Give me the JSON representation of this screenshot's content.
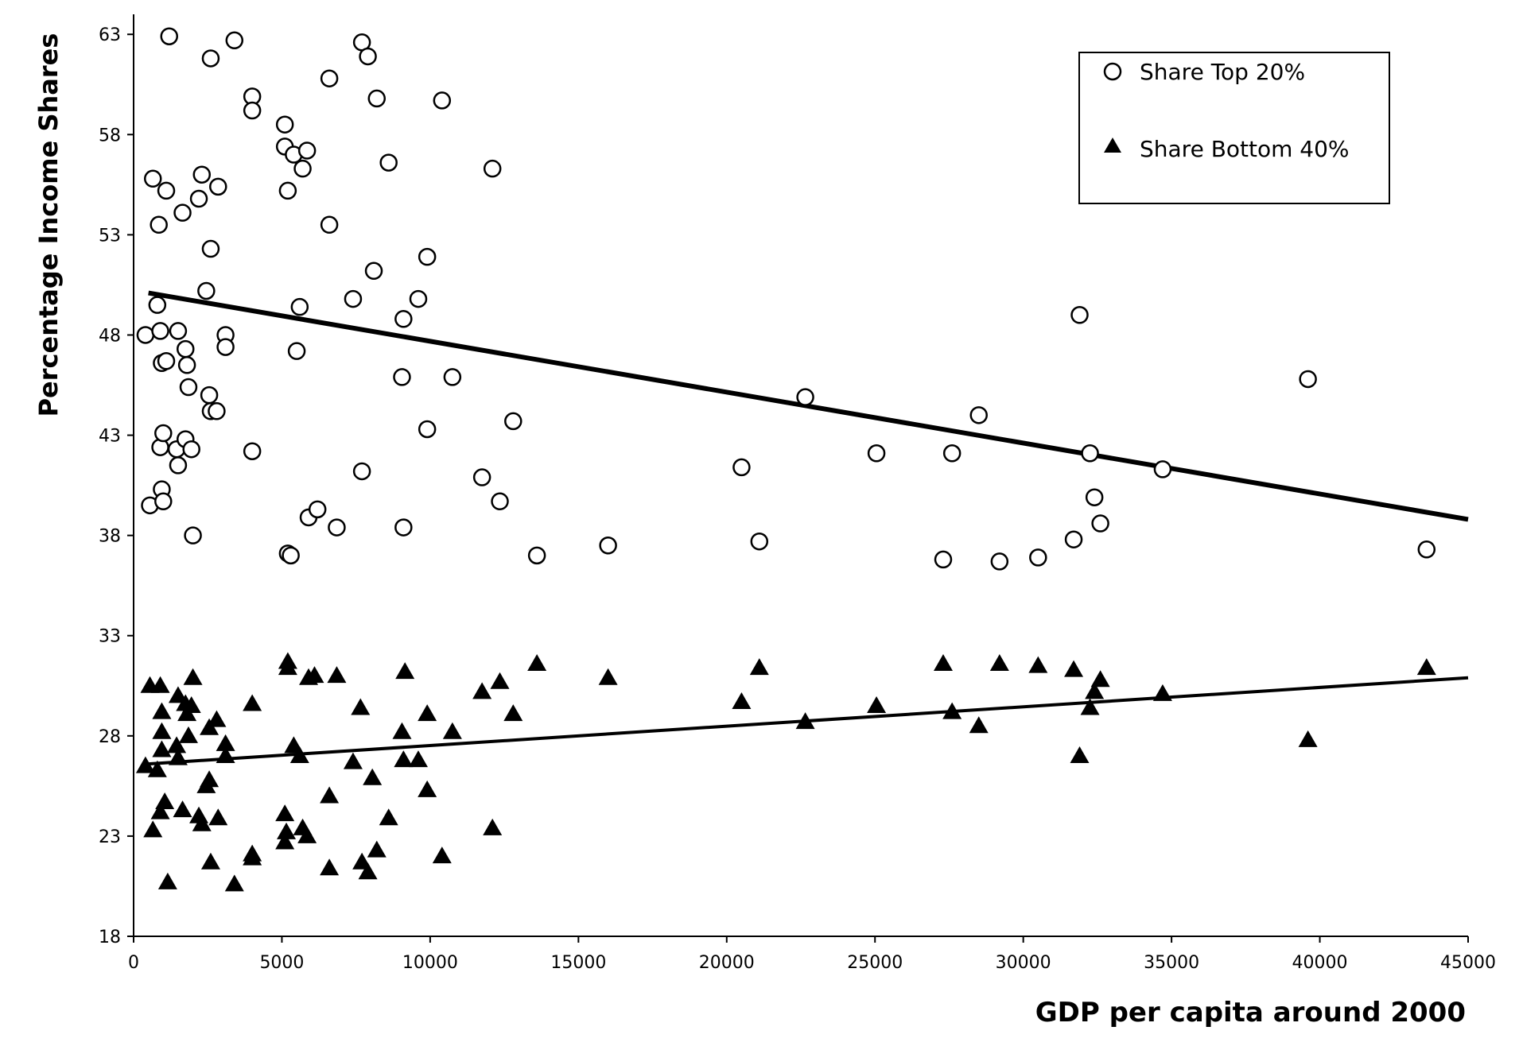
{
  "chart_data": {
    "type": "scatter",
    "xlabel": "GDP per capita around 2000",
    "ylabel": "Percentage Income Shares",
    "xlim": [
      0,
      45000
    ],
    "ylim": [
      18,
      64
    ],
    "xticks": [
      0,
      5000,
      10000,
      15000,
      20000,
      25000,
      30000,
      35000,
      40000,
      45000
    ],
    "yticks": [
      18,
      23,
      28,
      33,
      38,
      43,
      48,
      53,
      58,
      63
    ],
    "grid": false,
    "legend_position": "top-right",
    "series": [
      {
        "name": "Share Top 20%",
        "marker": "open-circle",
        "color": "#000000",
        "points": [
          [
            400,
            48
          ],
          [
            550,
            39.5
          ],
          [
            650,
            55.8
          ],
          [
            800,
            49.5
          ],
          [
            850,
            53.5
          ],
          [
            900,
            48.2
          ],
          [
            950,
            46.6
          ],
          [
            900,
            42.4
          ],
          [
            950,
            40.3
          ],
          [
            1000,
            39.7
          ],
          [
            1000,
            43.1
          ],
          [
            1100,
            46.7
          ],
          [
            1100,
            55.2
          ],
          [
            1200,
            62.9
          ],
          [
            1500,
            48.2
          ],
          [
            1450,
            42.3
          ],
          [
            1500,
            41.5
          ],
          [
            1650,
            54.1
          ],
          [
            1750,
            47.3
          ],
          [
            1800,
            46.5
          ],
          [
            1850,
            45.4
          ],
          [
            1750,
            42.8
          ],
          [
            1950,
            42.3
          ],
          [
            2000,
            38
          ],
          [
            2200,
            54.8
          ],
          [
            2300,
            56
          ],
          [
            2450,
            50.2
          ],
          [
            2550,
            45
          ],
          [
            2600,
            44.2
          ],
          [
            2600,
            52.3
          ],
          [
            2600,
            61.8
          ],
          [
            2800,
            44.2
          ],
          [
            2850,
            55.4
          ],
          [
            3100,
            48
          ],
          [
            3100,
            47.4
          ],
          [
            3400,
            62.7
          ],
          [
            4000,
            59.9
          ],
          [
            4000,
            59.2
          ],
          [
            4000,
            42.2
          ],
          [
            5100,
            58.5
          ],
          [
            5100,
            57.4
          ],
          [
            5200,
            55.2
          ],
          [
            5200,
            37.1
          ],
          [
            5300,
            37
          ],
          [
            5400,
            57
          ],
          [
            5500,
            47.2
          ],
          [
            5600,
            49.4
          ],
          [
            5700,
            56.3
          ],
          [
            5850,
            57.2
          ],
          [
            5900,
            38.9
          ],
          [
            6200,
            39.3
          ],
          [
            6600,
            60.8
          ],
          [
            6600,
            53.5
          ],
          [
            6850,
            38.4
          ],
          [
            7400,
            49.8
          ],
          [
            7700,
            62.6
          ],
          [
            7900,
            61.9
          ],
          [
            7700,
            41.2
          ],
          [
            8100,
            51.2
          ],
          [
            8200,
            59.8
          ],
          [
            8600,
            56.6
          ],
          [
            9100,
            48.8
          ],
          [
            9100,
            38.4
          ],
          [
            9050,
            45.9
          ],
          [
            9600,
            49.8
          ],
          [
            9900,
            51.9
          ],
          [
            9900,
            43.3
          ],
          [
            10400,
            59.7
          ],
          [
            10750,
            45.9
          ],
          [
            11750,
            40.9
          ],
          [
            12100,
            56.3
          ],
          [
            12350,
            39.7
          ],
          [
            12800,
            43.7
          ],
          [
            13600,
            37
          ],
          [
            16000,
            37.5
          ],
          [
            20500,
            41.4
          ],
          [
            21100,
            37.7
          ],
          [
            22650,
            44.9
          ],
          [
            25050,
            42.1
          ],
          [
            27300,
            36.8
          ],
          [
            27600,
            42.1
          ],
          [
            28500,
            44
          ],
          [
            29200,
            36.7
          ],
          [
            30500,
            36.9
          ],
          [
            31700,
            37.8
          ],
          [
            31900,
            49
          ],
          [
            32250,
            42.1
          ],
          [
            32400,
            39.9
          ],
          [
            32600,
            38.6
          ],
          [
            34700,
            41.3
          ],
          [
            39600,
            45.8
          ],
          [
            43600,
            37.3
          ]
        ],
        "trend": [
          [
            500,
            50.1
          ],
          [
            45000,
            38.8
          ]
        ]
      },
      {
        "name": "Share Bottom 40%",
        "marker": "filled-triangle",
        "color": "#000000",
        "points": [
          [
            400,
            26.5
          ],
          [
            550,
            30.5
          ],
          [
            650,
            23.3
          ],
          [
            800,
            26.3
          ],
          [
            900,
            30.5
          ],
          [
            950,
            29.2
          ],
          [
            950,
            28.2
          ],
          [
            950,
            27.3
          ],
          [
            900,
            24.2
          ],
          [
            1050,
            24.7
          ],
          [
            1150,
            20.7
          ],
          [
            1500,
            30
          ],
          [
            1450,
            27.5
          ],
          [
            1500,
            26.9
          ],
          [
            1650,
            24.3
          ],
          [
            1750,
            29.6
          ],
          [
            1800,
            29.1
          ],
          [
            1850,
            28
          ],
          [
            1950,
            29.5
          ],
          [
            2000,
            30.9
          ],
          [
            2200,
            24
          ],
          [
            2300,
            23.6
          ],
          [
            2450,
            25.5
          ],
          [
            2550,
            28.4
          ],
          [
            2550,
            25.8
          ],
          [
            2600,
            21.7
          ],
          [
            2800,
            28.8
          ],
          [
            2850,
            23.9
          ],
          [
            3100,
            27.6
          ],
          [
            3100,
            27
          ],
          [
            3400,
            20.6
          ],
          [
            4000,
            29.6
          ],
          [
            4000,
            22.1
          ],
          [
            4000,
            21.9
          ],
          [
            5100,
            24.1
          ],
          [
            5100,
            22.7
          ],
          [
            5200,
            31.7
          ],
          [
            5200,
            31.4
          ],
          [
            5150,
            23.2
          ],
          [
            5400,
            27.5
          ],
          [
            5600,
            27
          ],
          [
            5700,
            23.4
          ],
          [
            5850,
            23
          ],
          [
            5900,
            30.9
          ],
          [
            6100,
            31
          ],
          [
            6600,
            25
          ],
          [
            6600,
            21.4
          ],
          [
            6850,
            31
          ],
          [
            7400,
            26.7
          ],
          [
            7650,
            29.4
          ],
          [
            7700,
            21.7
          ],
          [
            7900,
            21.2
          ],
          [
            8050,
            25.9
          ],
          [
            8200,
            22.3
          ],
          [
            8600,
            23.9
          ],
          [
            9050,
            28.2
          ],
          [
            9150,
            31.2
          ],
          [
            9100,
            26.8
          ],
          [
            9600,
            26.8
          ],
          [
            9900,
            29.1
          ],
          [
            9900,
            25.3
          ],
          [
            10400,
            22
          ],
          [
            10750,
            28.2
          ],
          [
            11750,
            30.2
          ],
          [
            12100,
            23.4
          ],
          [
            12350,
            30.7
          ],
          [
            12800,
            29.1
          ],
          [
            13600,
            31.6
          ],
          [
            16000,
            30.9
          ],
          [
            20500,
            29.7
          ],
          [
            21100,
            31.4
          ],
          [
            22650,
            28.7
          ],
          [
            25050,
            29.5
          ],
          [
            27300,
            31.6
          ],
          [
            27600,
            29.2
          ],
          [
            28500,
            28.5
          ],
          [
            29200,
            31.6
          ],
          [
            30500,
            31.5
          ],
          [
            31700,
            31.3
          ],
          [
            31900,
            27
          ],
          [
            32250,
            29.4
          ],
          [
            32400,
            30.2
          ],
          [
            32600,
            30.8
          ],
          [
            34700,
            30.1
          ],
          [
            39600,
            27.8
          ],
          [
            43600,
            31.4
          ]
        ],
        "trend": [
          [
            500,
            26.6
          ],
          [
            45000,
            30.9
          ]
        ]
      }
    ]
  }
}
